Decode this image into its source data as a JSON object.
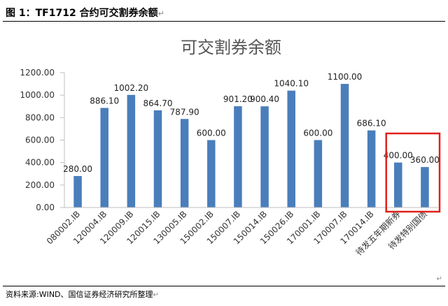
{
  "figure": {
    "title": "图 1：TF1712 合约可交割券余额",
    "source": "资料来源:WIND、国信证券经济研究所整理"
  },
  "chart_data": {
    "type": "bar",
    "title": "可交割券余额",
    "categories": [
      "080002.IB",
      "120004.IB",
      "120009.IB",
      "120015.IB",
      "130005.IB",
      "150002.IB",
      "150007.IB",
      "150014.IB",
      "150026.IB",
      "170001.IB",
      "170007.IB",
      "170014.IB",
      "待发五年期新券",
      "待发特别国债"
    ],
    "values": [
      280.0,
      886.1,
      1002.2,
      864.7,
      787.9,
      600.0,
      901.2,
      900.4,
      1040.1,
      600.0,
      1100.0,
      686.1,
      400.0,
      360.0
    ],
    "value_labels": [
      "280.00",
      "886.10",
      "1002.20",
      "864.70",
      "787.90",
      "600.00",
      "901.20",
      "900.40",
      "1040.10",
      "600.00",
      "1100.00",
      "686.10",
      "400.00",
      "360.00"
    ],
    "y_ticks": [
      "0.00",
      "200.00",
      "400.00",
      "600.00",
      "800.00",
      "1000.00",
      "1200.00"
    ],
    "ylim": [
      0,
      1200
    ],
    "grid": false,
    "bar_color": "#4a7ebb",
    "highlight": {
      "from_index": 12,
      "to_index": 13,
      "color": "#e0201b"
    }
  }
}
